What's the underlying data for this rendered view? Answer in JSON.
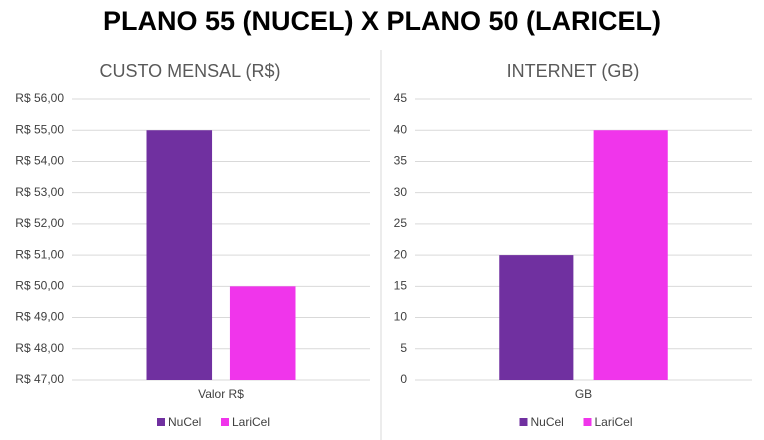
{
  "title": "PLANO 55 (NUCEL) X PLANO 50 (LARICEL)",
  "chart_data": [
    {
      "type": "bar",
      "title": "CUSTO MENSAL (R$)",
      "categories": [
        "Valor R$"
      ],
      "series": [
        {
          "name": "NuCel",
          "color": "#7030a0",
          "values": [
            55
          ]
        },
        {
          "name": "LariCel",
          "color": "#f035eb",
          "values": [
            50
          ]
        }
      ],
      "ylim": [
        47,
        56
      ],
      "yticks": [
        {
          "value": 47,
          "label": "R$ 47,00"
        },
        {
          "value": 48,
          "label": "R$ 48,00"
        },
        {
          "value": 49,
          "label": "R$ 49,00"
        },
        {
          "value": 50,
          "label": "R$ 50,00"
        },
        {
          "value": 51,
          "label": "R$ 51,00"
        },
        {
          "value": 52,
          "label": "R$ 52,00"
        },
        {
          "value": 53,
          "label": "R$ 53,00"
        },
        {
          "value": 54,
          "label": "R$ 54,00"
        },
        {
          "value": 55,
          "label": "R$ 55,00"
        },
        {
          "value": 56,
          "label": "R$ 56,00"
        }
      ],
      "grid": true
    },
    {
      "type": "bar",
      "title": "INTERNET (GB)",
      "categories": [
        "GB"
      ],
      "series": [
        {
          "name": "NuCel",
          "color": "#7030a0",
          "values": [
            20
          ]
        },
        {
          "name": "LariCel",
          "color": "#f035eb",
          "values": [
            40
          ]
        }
      ],
      "ylim": [
        0,
        45
      ],
      "yticks": [
        0,
        5,
        10,
        15,
        20,
        25,
        30,
        35,
        40,
        45
      ],
      "grid": true
    }
  ]
}
